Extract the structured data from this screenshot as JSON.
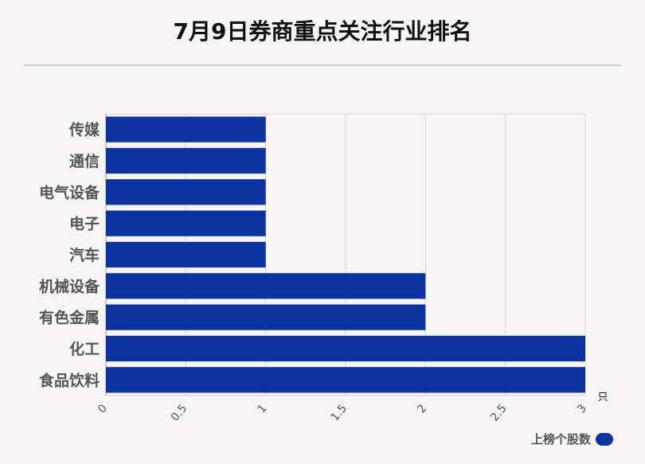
{
  "title": "7月9日券商重点关注行业排名",
  "unit_label": "只",
  "legend": {
    "label": "上榜个股数",
    "color": "#0d33a0"
  },
  "chart_data": {
    "type": "bar",
    "orientation": "horizontal",
    "categories": [
      "传媒",
      "通信",
      "电气设备",
      "电子",
      "汽车",
      "机械设备",
      "有色金属",
      "化工",
      "食品饮料"
    ],
    "series": [
      {
        "name": "上榜个股数",
        "values": [
          1,
          1,
          1,
          1,
          1,
          2,
          2,
          3,
          3
        ]
      }
    ],
    "x_ticks": [
      "0",
      "0.5",
      "1",
      "1.5",
      "2",
      "2.5",
      "3"
    ],
    "xlim": [
      0,
      3
    ],
    "grid": true,
    "legend_position": "bottom-right",
    "bar_color": "#0d33a0"
  }
}
